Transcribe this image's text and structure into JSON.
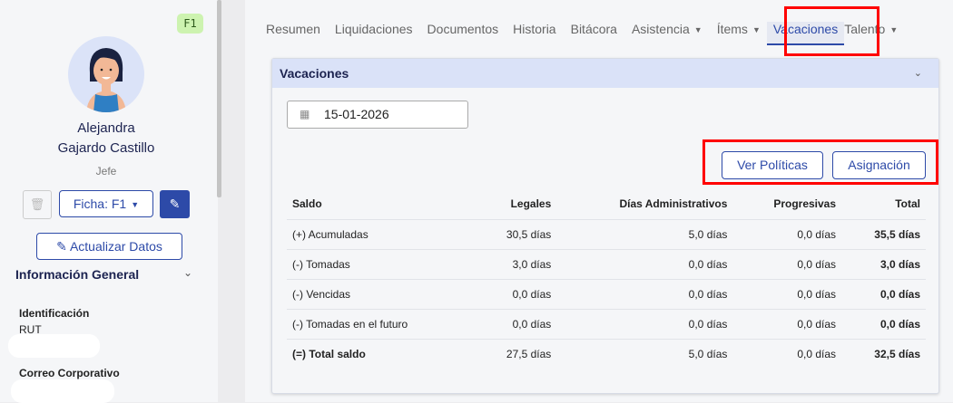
{
  "sidebar": {
    "badge": "F1",
    "name_first": "Alejandra",
    "name_last": "Gajardo Castillo",
    "role": "Jefe",
    "ficha_label": "Ficha: F1",
    "update_label": "Actualizar Datos",
    "section_title": "Información General",
    "fields": [
      {
        "label": "Identificación",
        "sublabel": "RUT"
      },
      {
        "label": "Correo Corporativo"
      }
    ]
  },
  "tabs": [
    {
      "label": "Resumen"
    },
    {
      "label": "Liquidaciones"
    },
    {
      "label": "Documentos"
    },
    {
      "label": "Historia"
    },
    {
      "label": "Bitácora"
    },
    {
      "label": "Asistencia",
      "dropdown": true
    },
    {
      "label": "Ítems",
      "dropdown": true
    },
    {
      "label": "Vacaciones",
      "active": true
    },
    {
      "label": "Talento",
      "dropdown": true
    }
  ],
  "card": {
    "title": "Vacaciones",
    "date": "15-01-2026",
    "btn_policies": "Ver Políticas",
    "btn_assign": "Asignación",
    "headers": [
      "Saldo",
      "Legales",
      "Días Administrativos",
      "Progresivas",
      "Total"
    ],
    "rows": [
      [
        "(+) Acumuladas",
        "30,5 días",
        "5,0 días",
        "0,0 días",
        "35,5 días"
      ],
      [
        "(-) Tomadas",
        "3,0 días",
        "0,0 días",
        "0,0 días",
        "3,0 días"
      ],
      [
        "(-) Vencidas",
        "0,0 días",
        "0,0 días",
        "0,0 días",
        "0,0 días"
      ],
      [
        "(-) Tomadas en el futuro",
        "0,0 días",
        "0,0 días",
        "0,0 días",
        "0,0 días"
      ],
      [
        "(=) Total saldo",
        "27,5 días",
        "5,0 días",
        "0,0 días",
        "32,5 días"
      ]
    ]
  },
  "colors": {
    "accent": "#2d4aa8",
    "header_bg": "#dae2f8",
    "highlight": "#ff0000"
  }
}
